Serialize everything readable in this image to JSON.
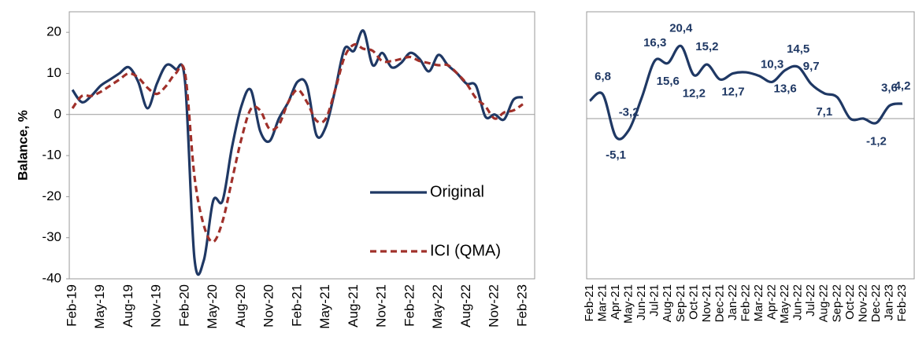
{
  "chart_data": [
    {
      "type": "line",
      "y_label": "Balance, %",
      "categories": [
        "Feb-19",
        null,
        null,
        "May-19",
        null,
        null,
        "Aug-19",
        null,
        null,
        "Nov-19",
        null,
        null,
        "Feb-20",
        null,
        null,
        "May-20",
        null,
        null,
        "Aug-20",
        null,
        null,
        "Nov-20",
        null,
        null,
        "Feb-21",
        null,
        null,
        "May-21",
        null,
        null,
        "Aug-21",
        null,
        null,
        "Nov-21",
        null,
        null,
        "Feb-22",
        null,
        null,
        "May-22",
        null,
        null,
        "Aug-22",
        null,
        null,
        "Nov-22",
        null,
        null,
        "Feb-23"
      ],
      "series": [
        {
          "name": "Original",
          "color": "#1f3864",
          "style": "solid",
          "values": [
            6,
            3,
            4.5,
            7,
            8.5,
            10,
            11.5,
            8,
            1.5,
            7.5,
            12,
            11,
            8,
            -35,
            -35.5,
            -21,
            -21,
            -8,
            2,
            6,
            -4,
            -6.5,
            -1,
            3,
            8,
            7,
            -5,
            -3,
            6,
            16,
            15.5,
            20.4,
            12,
            15,
            11.5,
            12.5,
            15,
            13.5,
            10.5,
            14.5,
            12,
            10,
            7.5,
            7,
            -0.5,
            0,
            -1.2,
            3.6,
            4.2
          ]
        },
        {
          "name": "ICI (QMA)",
          "color": "#a0302a",
          "style": "dashed",
          "values": [
            1.5,
            4.5,
            4.5,
            5.5,
            7,
            8.5,
            10,
            9,
            6.5,
            5,
            7,
            10,
            10,
            -15,
            -27,
            -31,
            -26,
            -16,
            -6,
            1.3,
            1,
            -3.5,
            -2.5,
            3,
            6,
            3,
            -1.5,
            -1,
            6,
            14,
            17,
            16,
            15.5,
            13,
            13,
            13.5,
            14,
            13,
            12.5,
            12,
            12,
            10,
            7.5,
            4,
            2,
            -1,
            0.5,
            1,
            2.5
          ]
        }
      ],
      "ylim": [
        -40,
        25
      ],
      "yticks": [
        -40,
        -30,
        -20,
        -10,
        0,
        10,
        20
      ],
      "legend": "lower right"
    },
    {
      "type": "line",
      "categories": [
        "Feb-21",
        "Mar-21",
        "Apr-21",
        "May-21",
        "Jun-21",
        "Jul-21",
        "Aug-21",
        "Sep-21",
        "Oct-21",
        "Nov-21",
        "Dec-21",
        "Jan-22",
        "Feb-22",
        "Mar-22",
        "Apr-22",
        "May-22",
        "Jun-22",
        "Jul-22",
        "Aug-22",
        "Sep-22",
        "Oct-22",
        "Nov-22",
        "Dec-22",
        "Jan-23",
        "Feb-23"
      ],
      "series": [
        {
          "color": "#1f3864",
          "values": [
            5,
            6.8,
            -5.1,
            -3.2,
            6,
            16.3,
            15.6,
            20.4,
            12.2,
            15.2,
            11,
            12.7,
            13,
            12,
            10.3,
            13.6,
            14.5,
            9.7,
            7.1,
            6,
            0,
            0,
            -1.2,
            3.6,
            4.2
          ],
          "value_labels": [
            null,
            "6,8",
            "-5,1",
            "-3,2",
            null,
            "16,3",
            "15,6",
            "20,4",
            "12,2",
            "15,2",
            null,
            "12,7",
            null,
            null,
            "10,3",
            "13,6",
            "14,5",
            "9,7",
            "7,1",
            null,
            null,
            null,
            "-1,2",
            "3,6",
            "4,2"
          ]
        }
      ],
      "ylim": [
        -45,
        30
      ]
    }
  ]
}
